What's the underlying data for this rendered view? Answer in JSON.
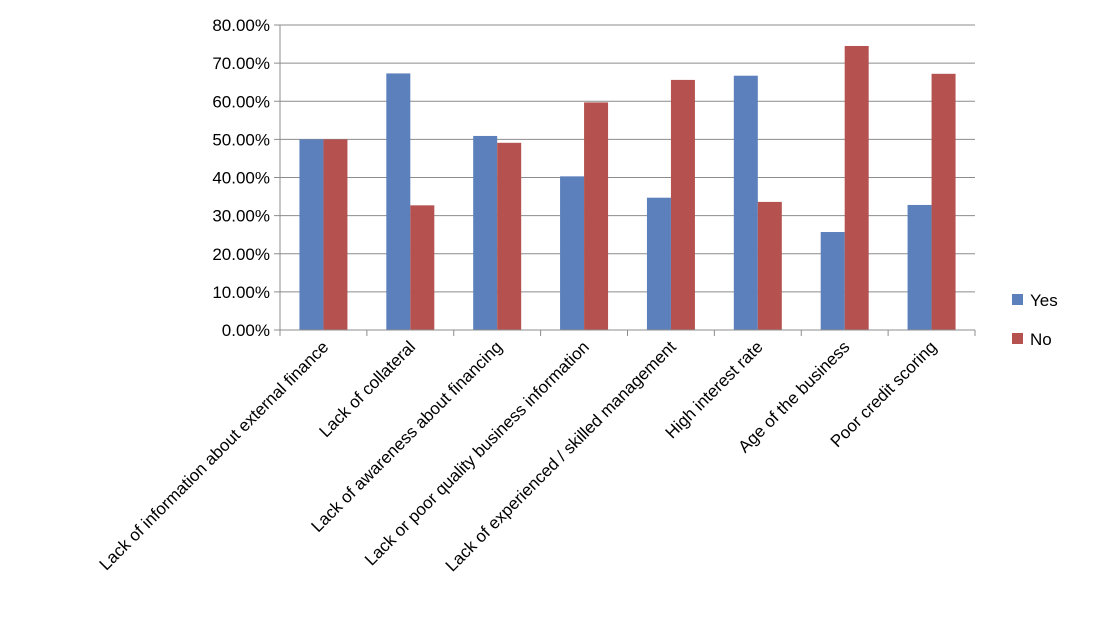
{
  "chart_data": {
    "type": "bar",
    "title": "",
    "xlabel": "",
    "ylabel": "",
    "categories": [
      "Lack of information about external finance",
      "Lack of collateral",
      "Lack of awareness about financing",
      "Lack or poor quality business information",
      "Lack of experienced / skilled management",
      "High interest rate",
      "Age of the business",
      "Poor credit scoring"
    ],
    "series": [
      {
        "name": "Yes",
        "color": "#5B80BB",
        "values": [
          50.0,
          67.3,
          50.9,
          40.3,
          34.7,
          66.7,
          25.7,
          32.8
        ]
      },
      {
        "name": "No",
        "color": "#B5524F",
        "values": [
          50.0,
          32.7,
          49.1,
          59.7,
          65.6,
          33.6,
          74.5,
          67.2
        ]
      }
    ],
    "ylim": [
      0,
      80
    ],
    "yticks": [
      0,
      10,
      20,
      30,
      40,
      50,
      60,
      70,
      80
    ],
    "ytick_labels": [
      "0.00%",
      "10.00%",
      "20.00%",
      "30.00%",
      "40.00%",
      "50.00%",
      "60.00%",
      "70.00%",
      "80.00%"
    ],
    "grid": true,
    "legend_position": "right"
  }
}
